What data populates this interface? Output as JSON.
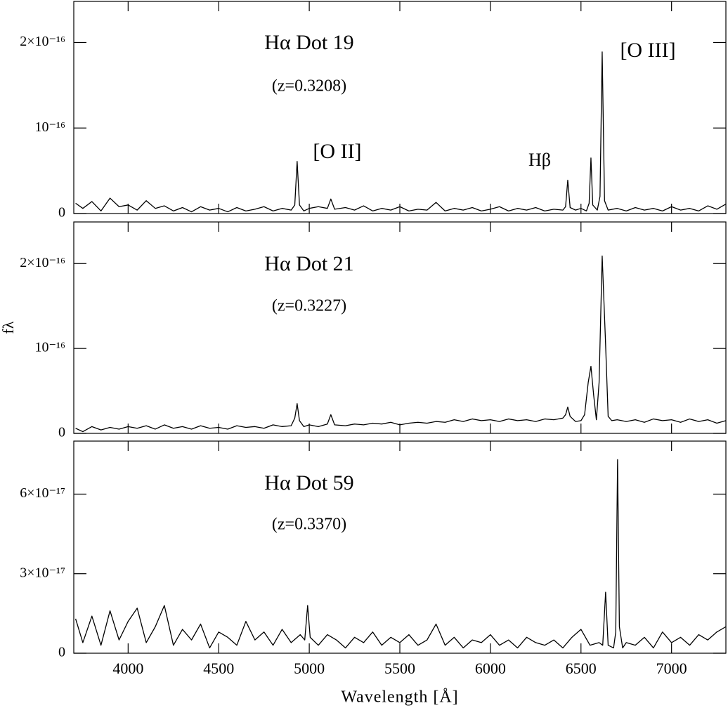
{
  "chart_data": [
    {
      "type": "line",
      "color": "#000000",
      "annotations": [
        "Hα Dot 19",
        "(z=0.3208)",
        "[O II]",
        "Hβ",
        "[O III]"
      ],
      "xlim": [
        3700,
        7300
      ],
      "xticks": [
        4000,
        4500,
        5000,
        5500,
        6000,
        6500,
        7000
      ],
      "ylim": [
        0,
        2.48e-16
      ],
      "yticks": [
        0,
        {
          "value": 1e-16,
          "label": "10⁻¹⁶"
        },
        {
          "value": 2e-16,
          "label": "2×10⁻¹⁶"
        }
      ],
      "x": [
        3710,
        3750,
        3800,
        3850,
        3900,
        3950,
        4000,
        4050,
        4100,
        4150,
        4200,
        4250,
        4300,
        4350,
        4400,
        4450,
        4500,
        4550,
        4600,
        4650,
        4700,
        4750,
        4800,
        4850,
        4900,
        4920,
        4933,
        4946,
        4970,
        5000,
        5050,
        5100,
        5119,
        5140,
        5200,
        5250,
        5300,
        5350,
        5400,
        5450,
        5500,
        5550,
        5600,
        5650,
        5700,
        5750,
        5800,
        5850,
        5900,
        5950,
        6000,
        6050,
        6100,
        6150,
        6200,
        6250,
        6300,
        6350,
        6400,
        6415,
        6427,
        6440,
        6470,
        6500,
        6530,
        6545,
        6555,
        6565,
        6590,
        6605,
        6617,
        6630,
        6650,
        6700,
        6750,
        6800,
        6850,
        6900,
        6950,
        7000,
        7050,
        7100,
        7150,
        7200,
        7250,
        7300
      ],
      "values": [
        1.2e-17,
        6e-18,
        1.4e-17,
        3e-18,
        1.8e-17,
        8e-18,
        1e-17,
        4e-18,
        1.5e-17,
        6e-18,
        9e-18,
        3e-18,
        7e-18,
        2e-18,
        8e-18,
        4e-18,
        6e-18,
        2e-18,
        7e-18,
        3e-18,
        5e-18,
        8e-18,
        3e-18,
        6e-18,
        4e-18,
        1e-17,
        6.1e-17,
        1e-17,
        3e-18,
        6e-18,
        8e-18,
        6e-18,
        1.7e-17,
        5e-18,
        7e-18,
        4e-18,
        9e-18,
        3e-18,
        6e-18,
        4e-18,
        8e-18,
        3e-18,
        5e-18,
        4e-18,
        1.3e-17,
        3e-18,
        6e-18,
        4e-18,
        7e-18,
        3e-18,
        5e-18,
        8e-18,
        3e-18,
        6e-18,
        4e-18,
        7e-18,
        3e-18,
        5e-18,
        4e-18,
        8e-18,
        3.9e-17,
        7e-18,
        4e-18,
        6e-18,
        3e-18,
        1.2e-17,
        6.5e-17,
        1e-17,
        4e-18,
        2e-17,
        1.89e-16,
        1.5e-17,
        4e-18,
        6e-18,
        3e-18,
        7e-18,
        4e-18,
        6e-18,
        3e-18,
        8e-18,
        4e-18,
        6e-18,
        3e-18,
        9e-18,
        5e-18,
        1.1e-17
      ]
    },
    {
      "type": "line",
      "color": "#000000",
      "annotations": [
        "Hα Dot 21",
        "(z=0.3227)"
      ],
      "ylabel": "fλ",
      "xlim": [
        3700,
        7300
      ],
      "xticks": [
        4000,
        4500,
        5000,
        5500,
        6000,
        6500,
        7000
      ],
      "ylim": [
        0,
        2.49e-16
      ],
      "yticks": [
        0,
        {
          "value": 1e-16,
          "label": "10⁻¹⁶"
        },
        {
          "value": 2e-16,
          "label": "2×10⁻¹⁶"
        }
      ],
      "x": [
        3710,
        3750,
        3800,
        3850,
        3900,
        3950,
        4000,
        4050,
        4100,
        4150,
        4200,
        4250,
        4300,
        4350,
        4400,
        4450,
        4500,
        4550,
        4600,
        4650,
        4700,
        4750,
        4800,
        4850,
        4900,
        4920,
        4933,
        4946,
        4970,
        5000,
        5050,
        5100,
        5119,
        5140,
        5200,
        5250,
        5300,
        5350,
        5400,
        5450,
        5500,
        5550,
        5600,
        5650,
        5700,
        5750,
        5800,
        5850,
        5900,
        5950,
        6000,
        6050,
        6100,
        6150,
        6200,
        6250,
        6300,
        6350,
        6400,
        6415,
        6427,
        6440,
        6470,
        6500,
        6520,
        6540,
        6555,
        6570,
        6585,
        6600,
        6617,
        6635,
        6650,
        6670,
        6700,
        6750,
        6800,
        6850,
        6900,
        6950,
        7000,
        7050,
        7100,
        7150,
        7200,
        7250,
        7300
      ],
      "values": [
        6e-18,
        2e-18,
        8e-18,
        4e-18,
        7e-18,
        5e-18,
        8e-18,
        6e-18,
        9e-18,
        5e-18,
        1e-17,
        6e-18,
        8e-18,
        5e-18,
        9e-18,
        6e-18,
        7e-18,
        5e-18,
        9e-18,
        7e-18,
        8e-18,
        6e-18,
        1e-17,
        8e-18,
        9e-18,
        1.8e-17,
        3.5e-17,
        1.5e-17,
        8e-18,
        1e-17,
        8e-18,
        1.1e-17,
        2.2e-17,
        1e-17,
        9e-18,
        1.1e-17,
        1e-17,
        1.2e-17,
        1.1e-17,
        1.3e-17,
        1e-17,
        1.2e-17,
        1.3e-17,
        1.2e-17,
        1.4e-17,
        1.3e-17,
        1.6e-17,
        1.4e-17,
        1.7e-17,
        1.5e-17,
        1.6e-17,
        1.4e-17,
        1.7e-17,
        1.5e-17,
        1.6e-17,
        1.4e-17,
        1.7e-17,
        1.6e-17,
        1.8e-17,
        2.2e-17,
        3.1e-17,
        2e-17,
        1.4e-17,
        1.5e-17,
        2.2e-17,
        6e-17,
        7.9e-17,
        4.5e-17,
        1.6e-17,
        6e-17,
        2.09e-16,
        1.1e-16,
        2e-17,
        1.5e-17,
        1.6e-17,
        1.4e-17,
        1.6e-17,
        1.3e-17,
        1.7e-17,
        1.5e-17,
        1.6e-17,
        1.3e-17,
        1.7e-17,
        1.4e-17,
        1.6e-17,
        1.2e-17,
        1.5e-17
      ]
    },
    {
      "type": "line",
      "color": "#000000",
      "annotations": [
        "Hα Dot 59",
        "(z=0.3370)"
      ],
      "xlabel": "Wavelength [Å]",
      "xlim": [
        3700,
        7300
      ],
      "xticks": [
        4000,
        4500,
        5000,
        5500,
        6000,
        6500,
        7000
      ],
      "ylim": [
        0,
        8e-17
      ],
      "yticks": [
        0,
        {
          "value": 3e-17,
          "label": "3×10⁻¹⁷"
        },
        {
          "value": 6e-17,
          "label": "6×10⁻¹⁷"
        }
      ],
      "x": [
        3710,
        3750,
        3800,
        3850,
        3900,
        3950,
        4000,
        4050,
        4100,
        4150,
        4200,
        4250,
        4300,
        4350,
        4400,
        4450,
        4500,
        4550,
        4600,
        4650,
        4700,
        4750,
        4800,
        4850,
        4900,
        4950,
        4975,
        4991,
        5005,
        5050,
        5100,
        5150,
        5200,
        5250,
        5300,
        5350,
        5400,
        5450,
        5500,
        5550,
        5600,
        5650,
        5700,
        5750,
        5800,
        5850,
        5900,
        5950,
        6000,
        6050,
        6100,
        6150,
        6200,
        6250,
        6300,
        6350,
        6400,
        6450,
        6500,
        6550,
        6600,
        6620,
        6636,
        6650,
        6680,
        6692,
        6702,
        6712,
        6730,
        6750,
        6800,
        6850,
        6900,
        6950,
        7000,
        7050,
        7100,
        7150,
        7200,
        7250,
        7300
      ],
      "values": [
        1.3e-17,
        4e-18,
        1.4e-17,
        3e-18,
        1.6e-17,
        5e-18,
        1.2e-17,
        1.7e-17,
        4e-18,
        1e-17,
        1.8e-17,
        3e-18,
        9e-18,
        5e-18,
        1.1e-17,
        2e-18,
        8e-18,
        6e-18,
        3e-18,
        1.2e-17,
        5e-18,
        8e-18,
        3e-18,
        9e-18,
        4e-18,
        7e-18,
        5e-18,
        1.8e-17,
        6e-18,
        3e-18,
        7e-18,
        5e-18,
        2e-18,
        6e-18,
        4e-18,
        8e-18,
        3e-18,
        6e-18,
        4e-18,
        7e-18,
        3e-18,
        5e-18,
        1.1e-17,
        3e-18,
        6e-18,
        2e-18,
        5e-18,
        4e-18,
        7e-18,
        3e-18,
        5e-18,
        2e-18,
        6e-18,
        4e-18,
        3e-18,
        5e-18,
        2e-18,
        6e-18,
        9e-18,
        3e-18,
        4e-18,
        3e-18,
        2.3e-17,
        3e-18,
        2e-18,
        8e-18,
        7.3e-17,
        1e-17,
        2e-18,
        4e-18,
        3e-18,
        6e-18,
        2e-18,
        8e-18,
        4e-18,
        6e-18,
        3e-18,
        7e-18,
        5e-18,
        8e-18,
        1e-17
      ]
    }
  ]
}
